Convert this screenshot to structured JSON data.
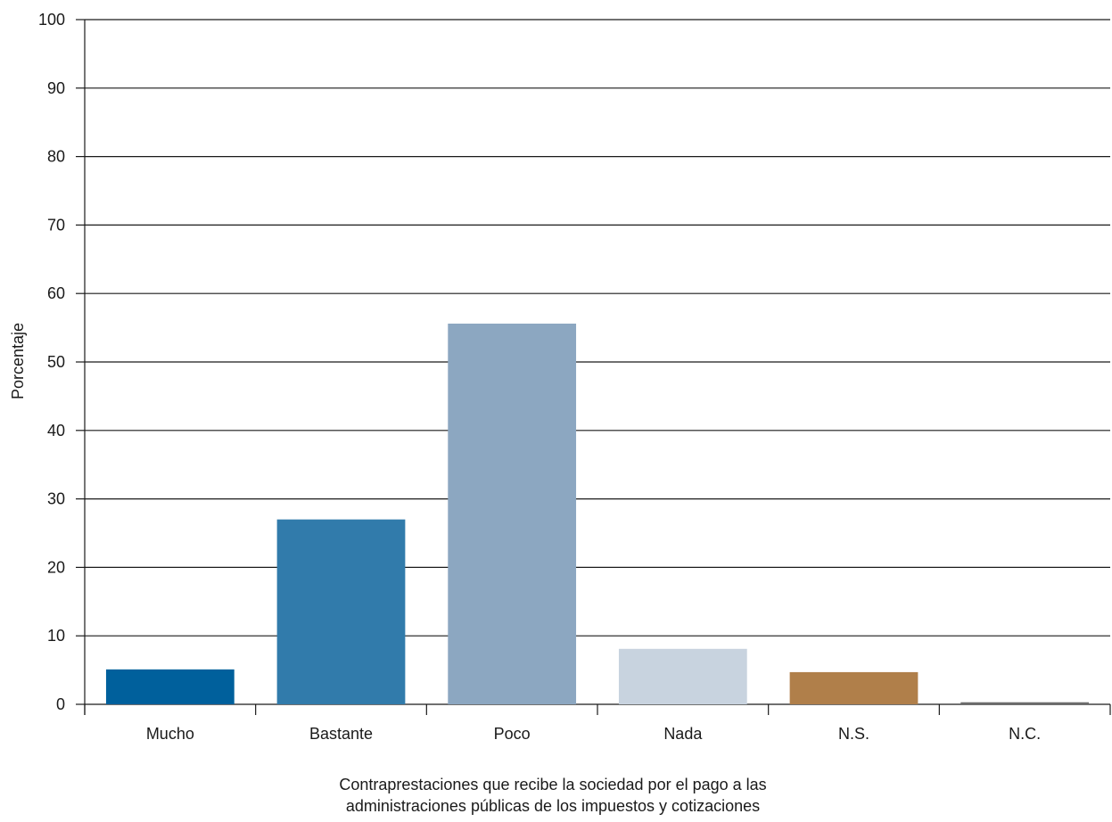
{
  "chart_data": {
    "type": "bar",
    "categories": [
      "Mucho",
      "Bastante",
      "Poco",
      "Nada",
      "N.S.",
      "N.C."
    ],
    "values": [
      5.1,
      27.0,
      55.6,
      8.1,
      4.7,
      0.3
    ],
    "colors": [
      "#00609c",
      "#317bab",
      "#8ca7c1",
      "#c8d3df",
      "#b07f4a",
      "#6b6b6b"
    ],
    "ylabel": "Porcentaje",
    "xlabel_lines": [
      "Contraprestaciones que recibe la sociedad por el pago a las",
      "administraciones públicas de los impuestos y cotizaciones"
    ],
    "ylim": [
      0,
      100
    ],
    "yticks": [
      0,
      10,
      20,
      30,
      40,
      50,
      60,
      70,
      80,
      90,
      100
    ],
    "grid": true
  }
}
